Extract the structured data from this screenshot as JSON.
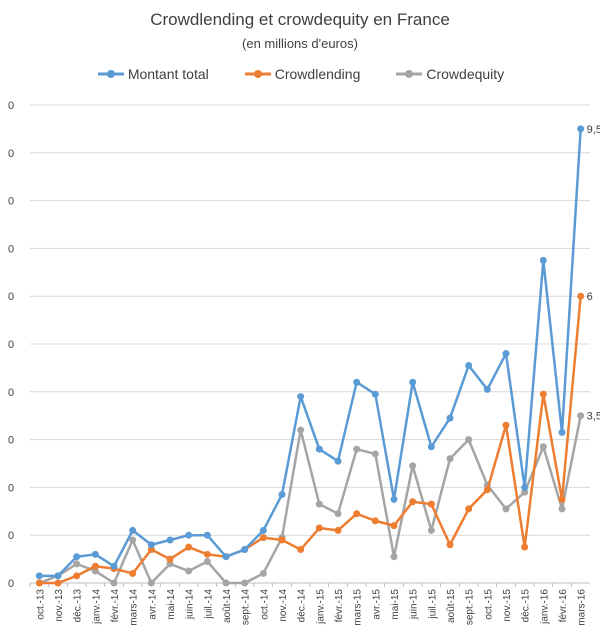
{
  "chart_data": {
    "type": "line",
    "title": "Crowdlending et crowdequity en France",
    "subtitle": "(en millions d'euros)",
    "xlabel": "",
    "ylabel": "",
    "ylim": [
      0,
      10
    ],
    "ytick_labels": [
      "0",
      "0",
      "0",
      "0",
      "0",
      "0",
      "0",
      "0",
      "0",
      "0",
      "0"
    ],
    "grid": "horizontal",
    "legend_position": "top",
    "categories": [
      "oct.-13",
      "nov.-13",
      "déc.-13",
      "janv.-14",
      "févr.-14",
      "mars-14",
      "avr.-14",
      "mai-14",
      "juin-14",
      "juil.-14",
      "août-14",
      "sept.-14",
      "oct.-14",
      "nov.-14",
      "déc.-14",
      "janv.-15",
      "févr.-15",
      "mars-15",
      "avr.-15",
      "mai-15",
      "juin-15",
      "juil.-15",
      "août-15",
      "sept.-15",
      "oct.-15",
      "nov.-15",
      "déc.-15",
      "janv.-16",
      "févr.-16",
      "mars-16"
    ],
    "series": [
      {
        "name": "Montant total",
        "color": "#5B9BD5",
        "values": [
          0.15,
          0.15,
          0.55,
          0.6,
          0.35,
          1.1,
          0.8,
          0.9,
          1.0,
          1.0,
          0.55,
          0.7,
          1.1,
          1.85,
          3.9,
          2.8,
          2.55,
          4.2,
          3.95,
          1.75,
          4.2,
          2.85,
          3.45,
          4.55,
          4.05,
          4.8,
          2.0,
          6.75,
          3.15,
          9.5
        ],
        "end_label": "9,5"
      },
      {
        "name": "Crowdlending",
        "color": "#ED7D31",
        "values": [
          0.0,
          0.0,
          0.15,
          0.35,
          0.3,
          0.2,
          0.7,
          0.5,
          0.75,
          0.6,
          0.55,
          0.7,
          0.95,
          0.9,
          0.7,
          1.15,
          1.1,
          1.45,
          1.3,
          1.2,
          1.7,
          1.65,
          0.8,
          1.55,
          1.95,
          3.3,
          0.75,
          3.95,
          1.75,
          6.0
        ],
        "end_label": "6"
      },
      {
        "name": "Crowdequity",
        "color": "#A5A5A5",
        "values": [
          0.0,
          0.15,
          0.4,
          0.25,
          0.0,
          0.9,
          0.0,
          0.4,
          0.25,
          0.45,
          0.0,
          0.0,
          0.2,
          0.95,
          3.2,
          1.65,
          1.45,
          2.8,
          2.7,
          0.55,
          2.45,
          1.1,
          2.6,
          3.0,
          2.05,
          1.55,
          1.9,
          2.85,
          1.55,
          3.5
        ],
        "end_label": "3,5"
      }
    ]
  }
}
